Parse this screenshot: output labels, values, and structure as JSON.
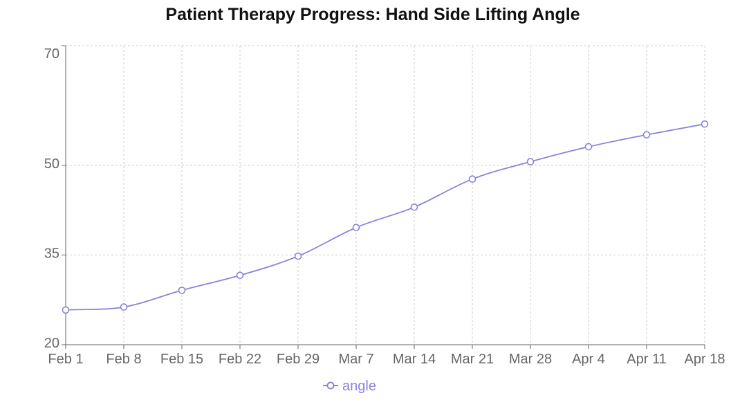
{
  "title": "Patient Therapy Progress: Hand Side Lifting Angle",
  "legend": {
    "label": "angle",
    "icon": "line-with-hollow-circle-icon",
    "position": "bottom-center"
  },
  "colors": {
    "series": "#8884d8",
    "grid": "#cccccc",
    "axis": "#666666",
    "tick_text": "#666666",
    "title_text": "#111111",
    "marker_fill": "#ffffff",
    "background": "#ffffff"
  },
  "chart_data": {
    "type": "line",
    "title": "Patient Therapy Progress: Hand Side Lifting Angle",
    "categories": [
      "Feb 1",
      "Feb 8",
      "Feb 15",
      "Feb 22",
      "Feb 29",
      "Mar 7",
      "Mar 14",
      "Mar 21",
      "Mar 28",
      "Apr 4",
      "Apr 11",
      "Apr 18"
    ],
    "series": [
      {
        "name": "angle",
        "values": [
          25.8,
          26.3,
          29.1,
          31.6,
          34.8,
          39.6,
          43.0,
          47.7,
          50.6,
          53.1,
          55.1,
          56.9
        ]
      }
    ],
    "xlabel": "",
    "ylabel": "",
    "y_ticks": [
      20,
      35,
      50,
      70
    ],
    "y_tick_labels": [
      "20",
      "35",
      "50",
      "70"
    ],
    "ylim": [
      20,
      70
    ],
    "grid": true,
    "grid_style": "dashed",
    "line_style": "smooth",
    "marker": "hollow-circle",
    "legend_position": "bottom"
  }
}
